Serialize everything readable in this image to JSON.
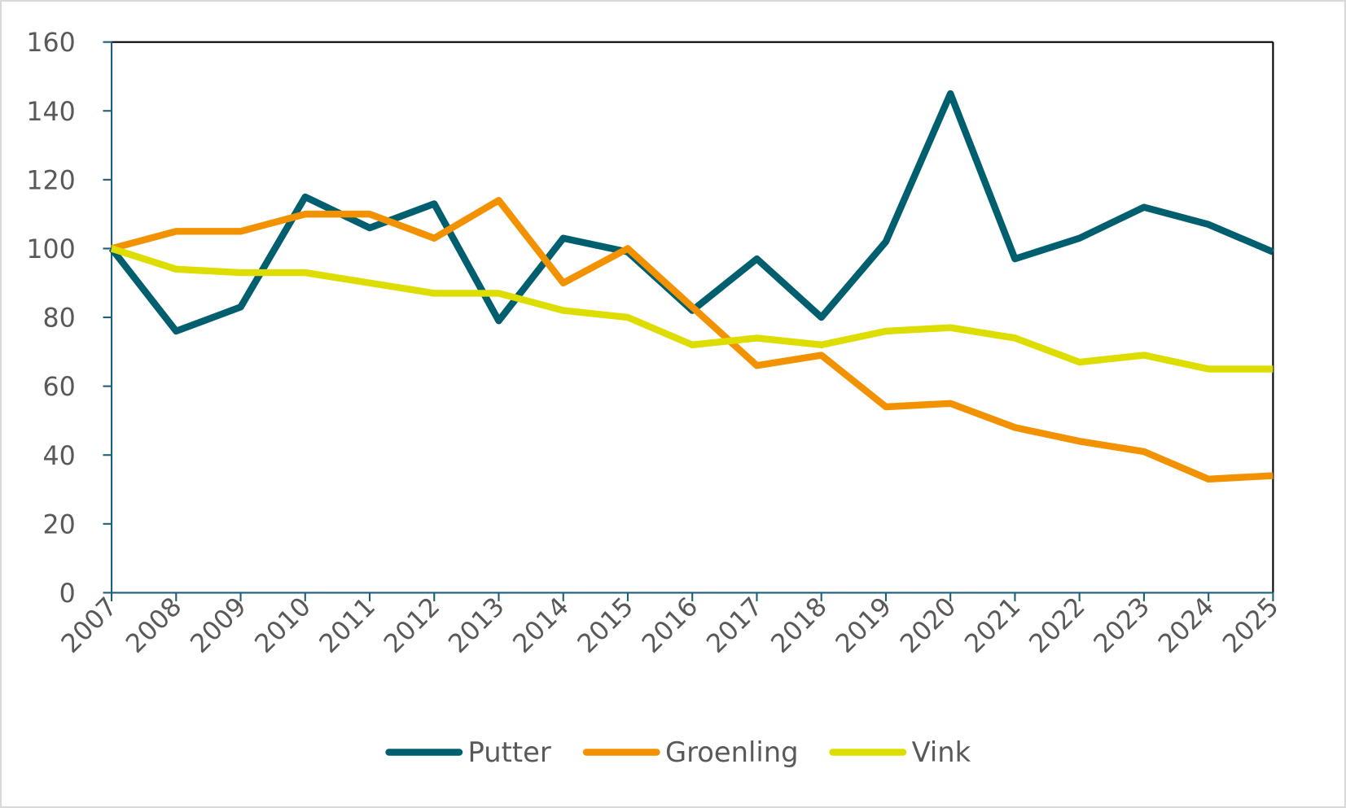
{
  "chart_data": {
    "type": "line",
    "title": "",
    "xlabel": "",
    "ylabel": "",
    "categories": [
      "2007",
      "2008",
      "2009",
      "2010",
      "2011",
      "2012",
      "2013",
      "2014",
      "2015",
      "2016",
      "2017",
      "2018",
      "2019",
      "2020",
      "2021",
      "2022",
      "2023",
      "2024",
      "2025"
    ],
    "ylim": [
      0,
      160
    ],
    "yticks": [
      "0",
      "20",
      "40",
      "60",
      "80",
      "100",
      "120",
      "140",
      "160"
    ],
    "grid": false,
    "legend": "bottom",
    "series": [
      {
        "name": "Putter",
        "color": "#005f6e",
        "values": [
          100,
          76,
          83,
          115,
          106,
          113,
          79,
          103,
          99,
          82,
          97,
          80,
          102,
          145,
          97,
          103,
          112,
          107,
          99
        ]
      },
      {
        "name": "Groenling",
        "color": "#f29200",
        "values": [
          100,
          105,
          105,
          110,
          110,
          103,
          114,
          90,
          100,
          83,
          66,
          69,
          54,
          55,
          48,
          44,
          41,
          33,
          34
        ]
      },
      {
        "name": "Vink",
        "color": "#dedd00",
        "values": [
          100,
          94,
          93,
          93,
          90,
          87,
          87,
          82,
          80,
          72,
          74,
          72,
          76,
          77,
          74,
          67,
          69,
          65,
          65
        ]
      }
    ]
  }
}
